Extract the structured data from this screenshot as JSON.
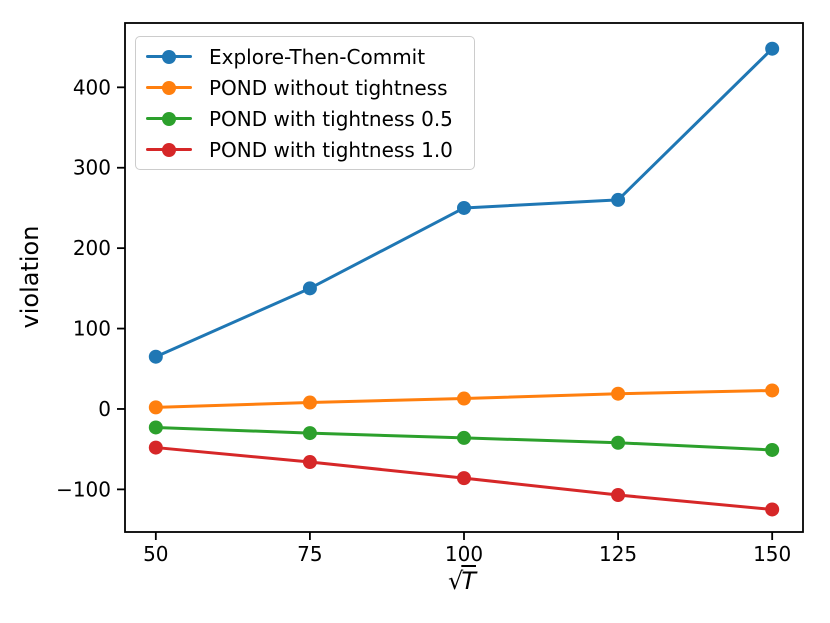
{
  "chart_data": {
    "type": "line",
    "title": "",
    "xlabel": "√T",
    "xlabel_radical": "√",
    "xlabel_radicand": "T",
    "ylabel": "violation",
    "x": [
      50,
      75,
      100,
      125,
      150
    ],
    "series": [
      {
        "name": "Explore-Then-Commit",
        "color": "#1f77b4",
        "values": [
          65,
          150,
          250,
          260,
          448
        ]
      },
      {
        "name": "POND without tightness",
        "color": "#ff7f0e",
        "values": [
          2,
          8,
          13,
          19,
          23
        ]
      },
      {
        "name": "POND with tightness 0.5",
        "color": "#2ca02c",
        "values": [
          -23,
          -30,
          -36,
          -42,
          -51
        ]
      },
      {
        "name": "POND with tightness 1.0",
        "color": "#d62728",
        "values": [
          -48,
          -66,
          -86,
          -107,
          -125
        ]
      }
    ],
    "xticks": [
      50,
      75,
      100,
      125,
      150
    ],
    "xtick_labels": [
      "50",
      "75",
      "100",
      "125",
      "150"
    ],
    "yticks": [
      400,
      300,
      200,
      100,
      0,
      -100
    ],
    "ytick_labels": [
      "400",
      "300",
      "200",
      "100",
      "0",
      "−100"
    ],
    "xlim": [
      45,
      155
    ],
    "ylim": [
      -153,
      480
    ],
    "grid": false,
    "legend_position": "upper left",
    "axis_color": "#000000",
    "text_color": "#000000",
    "marker": "circle",
    "line_width": 3,
    "marker_radius": 7
  }
}
